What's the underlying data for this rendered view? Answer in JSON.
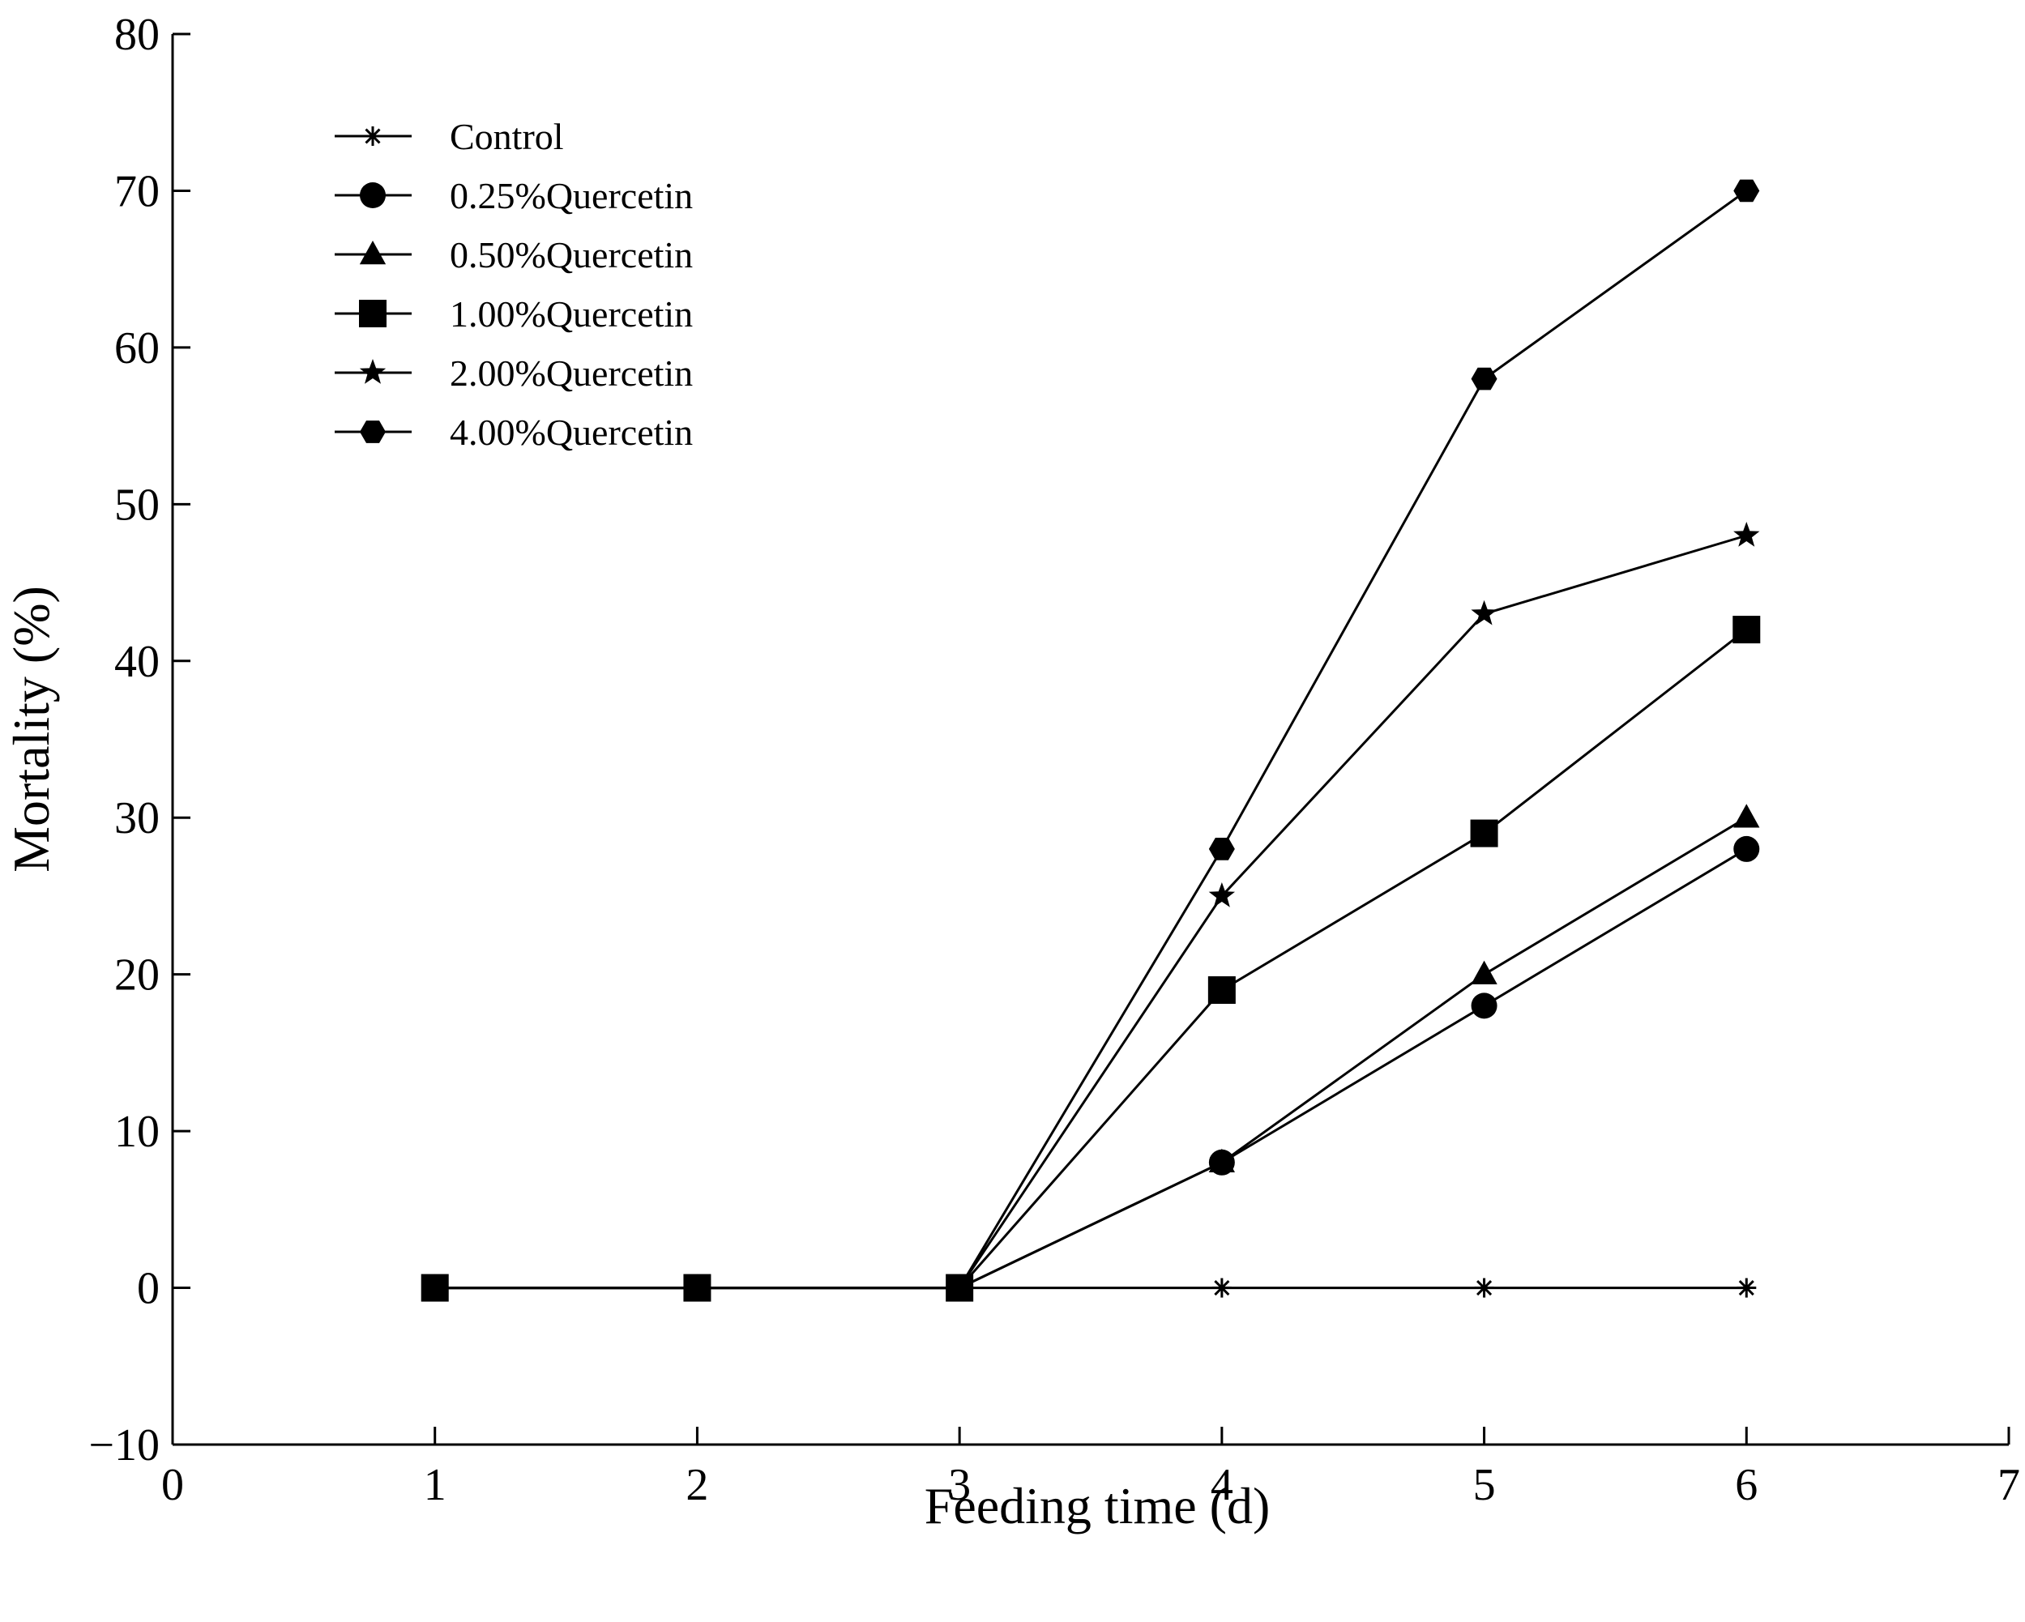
{
  "chart_data": {
    "type": "line",
    "title": "",
    "xlabel": "Feeding time (d)",
    "ylabel": "Mortality (%)",
    "xlim": [
      0,
      7
    ],
    "ylim": [
      -10,
      80
    ],
    "xticks": [
      0,
      1,
      2,
      3,
      4,
      5,
      6,
      7
    ],
    "yticks": [
      -10,
      0,
      10,
      20,
      30,
      40,
      50,
      60,
      70,
      80
    ],
    "grid": false,
    "legend_position": "top-left",
    "series": [
      {
        "name": "Control",
        "marker": "asterisk",
        "x": [
          1,
          2,
          3,
          4,
          5,
          6
        ],
        "values": [
          0,
          0,
          0,
          0,
          0,
          0
        ]
      },
      {
        "name": "0.25%Quercetin",
        "marker": "circle",
        "x": [
          1,
          2,
          3,
          4,
          5,
          6
        ],
        "values": [
          0,
          0,
          0,
          8,
          18,
          28
        ]
      },
      {
        "name": "0.50%Quercetin",
        "marker": "triangle",
        "x": [
          1,
          2,
          3,
          4,
          5,
          6
        ],
        "values": [
          0,
          0,
          0,
          8,
          20,
          30
        ]
      },
      {
        "name": "1.00%Quercetin",
        "marker": "square",
        "x": [
          1,
          2,
          3,
          4,
          5,
          6
        ],
        "values": [
          0,
          0,
          0,
          19,
          29,
          42
        ]
      },
      {
        "name": "2.00%Quercetin",
        "marker": "star",
        "x": [
          1,
          2,
          3,
          4,
          5,
          6
        ],
        "values": [
          0,
          0,
          0,
          25,
          43,
          48
        ]
      },
      {
        "name": "4.00%Quercetin",
        "marker": "hexagon",
        "x": [
          1,
          2,
          3,
          4,
          5,
          6
        ],
        "values": [
          0,
          0,
          0,
          28,
          58,
          70
        ]
      }
    ],
    "colors": {
      "line": "#000000",
      "background": "#ffffff"
    }
  }
}
